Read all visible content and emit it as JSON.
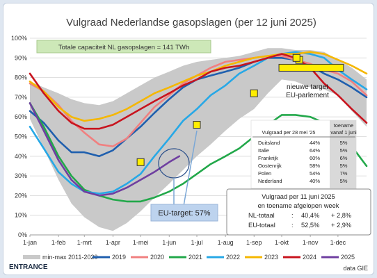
{
  "chart_data": {
    "type": "line",
    "title": "Vulgraad Nederlandse gasopslagen (per 12 juni 2025)",
    "xlabel": "",
    "ylabel": "",
    "x_ticks": [
      "1-jan",
      "1-feb",
      "1-mrt",
      "1-apr",
      "1-mei",
      "1-jun",
      "1-jul",
      "1-aug",
      "1-sep",
      "1-okt",
      "1-nov",
      "1-dec"
    ],
    "x_tick_days": [
      0,
      31,
      59,
      90,
      120,
      151,
      181,
      212,
      243,
      273,
      304,
      334
    ],
    "xlim": [
      0,
      365
    ],
    "y_ticks": [
      "0%",
      "10%",
      "20%",
      "30%",
      "40%",
      "50%",
      "60%",
      "70%",
      "80%",
      "90%",
      "100%"
    ],
    "ylim": [
      0,
      100
    ],
    "band": {
      "name": "min-max 2011-2020",
      "color": "#c9c9c9",
      "x": [
        0,
        15,
        31,
        45,
        59,
        75,
        90,
        105,
        120,
        135,
        151,
        166,
        181,
        196,
        212,
        227,
        243,
        258,
        273,
        288,
        304,
        319,
        334,
        349,
        365
      ],
      "min": [
        59,
        44,
        28,
        16,
        9,
        4,
        2,
        6,
        12,
        19,
        26,
        33,
        40,
        46,
        53,
        59,
        64,
        72,
        79,
        78,
        75,
        74,
        71,
        63,
        55
      ],
      "max": [
        78,
        75,
        72,
        69,
        67,
        66,
        68,
        72,
        76,
        80,
        83,
        86,
        88,
        89,
        90,
        91,
        93,
        95,
        95,
        94,
        94,
        93,
        89,
        85,
        79
      ]
    },
    "series": [
      {
        "name": "2019",
        "color": "#1f5fae",
        "x": [
          0,
          15,
          31,
          45,
          59,
          75,
          90,
          105,
          120,
          135,
          151,
          166,
          181,
          196,
          212,
          227,
          243,
          258,
          273,
          288,
          304,
          319,
          334,
          349,
          365
        ],
        "y": [
          63,
          57,
          48,
          42,
          42,
          40,
          43,
          49,
          55,
          62,
          69,
          75,
          79,
          81,
          83,
          85,
          88,
          90,
          90,
          89,
          86,
          82,
          79,
          75,
          70
        ]
      },
      {
        "name": "2020",
        "color": "#f08080",
        "x": [
          0,
          15,
          31,
          45,
          59,
          75,
          90,
          105,
          120,
          135,
          151,
          166,
          181,
          196,
          212,
          227,
          243,
          258,
          273,
          288,
          304,
          319,
          334,
          349,
          365
        ],
        "y": [
          77,
          73,
          66,
          58,
          52,
          46,
          45,
          49,
          57,
          65,
          71,
          77,
          81,
          85,
          88,
          89,
          90,
          91,
          91,
          89,
          87,
          84,
          82,
          78,
          71
        ]
      },
      {
        "name": "2021",
        "color": "#22a84a",
        "x": [
          0,
          15,
          31,
          45,
          59,
          75,
          90,
          105,
          120,
          135,
          151,
          166,
          181,
          196,
          212,
          227,
          243,
          258,
          273,
          288,
          304,
          319,
          334,
          349,
          365
        ],
        "y": [
          67,
          55,
          40,
          30,
          23,
          20,
          18,
          17,
          17,
          19,
          22,
          26,
          31,
          36,
          40,
          44,
          50,
          56,
          61,
          61,
          60,
          57,
          53,
          45,
          35
        ]
      },
      {
        "name": "2022",
        "color": "#27a8e6",
        "x": [
          0,
          15,
          31,
          45,
          59,
          75,
          90,
          105,
          120,
          135,
          151,
          166,
          181,
          196,
          212,
          227,
          243,
          258,
          273,
          288,
          304,
          319,
          334,
          349,
          365
        ],
        "y": [
          55,
          44,
          32,
          26,
          22,
          21,
          22,
          26,
          31,
          40,
          49,
          58,
          64,
          71,
          76,
          82,
          86,
          90,
          92,
          93,
          92,
          90,
          84,
          79,
          74
        ]
      },
      {
        "name": "2023",
        "color": "#f5b700",
        "x": [
          0,
          15,
          31,
          45,
          59,
          75,
          90,
          105,
          120,
          135,
          151,
          166,
          181,
          196,
          212,
          227,
          243,
          258,
          273,
          288,
          304,
          319,
          334,
          349,
          365
        ],
        "y": [
          78,
          73,
          65,
          60,
          58,
          59,
          61,
          64,
          68,
          72,
          75,
          78,
          81,
          83,
          86,
          88,
          90,
          91,
          92,
          92,
          93,
          92,
          89,
          86,
          82
        ]
      },
      {
        "name": "2024",
        "color": "#c8141e",
        "x": [
          0,
          15,
          31,
          45,
          59,
          75,
          90,
          105,
          120,
          135,
          151,
          166,
          181,
          196,
          212,
          227,
          243,
          258,
          273,
          288,
          304,
          319,
          334,
          349,
          365
        ],
        "y": [
          82,
          72,
          63,
          57,
          54,
          54,
          56,
          60,
          64,
          68,
          72,
          76,
          79,
          83,
          85,
          86,
          88,
          90,
          92,
          90,
          85,
          77,
          71,
          64,
          57
        ]
      },
      {
        "name": "2025",
        "color": "#6f3fa0",
        "x": [
          0,
          15,
          31,
          45,
          59,
          75,
          90,
          105,
          120,
          135,
          151,
          162
        ],
        "y": [
          67,
          53,
          38,
          28,
          22,
          20,
          21,
          24,
          28,
          32,
          37,
          40
        ]
      }
    ],
    "legend": [
      "min-max 2011-2020",
      "2019",
      "2020",
      "2021",
      "2022",
      "2023",
      "2024",
      "2025"
    ],
    "legend_position": "bottom",
    "grid": true,
    "target_markers": {
      "x": [
        120,
        181,
        243,
        292,
        289
      ],
      "y": [
        37,
        56,
        72,
        89,
        90
      ]
    },
    "new_target_bar": {
      "x": [
        270,
        340
      ],
      "y": 85
    },
    "annotations": {
      "capacity": "Totale capaciteit NL gasopslagen = 141 TWh",
      "new_target_line1": "nieuwe target",
      "new_target_line2": "EU-parlement",
      "eu_target": "EU-target: 57%"
    },
    "table_may": {
      "header1": "Vulgraad per 28 mei '25",
      "header2_line1": "toename",
      "header2_line2": "vanaf 1 juni",
      "rows": [
        [
          "Duitsland",
          "44%",
          "5%"
        ],
        [
          "Italie",
          "64%",
          "5%"
        ],
        [
          "Frankrijk",
          "60%",
          "6%"
        ],
        [
          "Oostenrijk",
          "58%",
          "5%"
        ],
        [
          "Polen",
          "54%",
          "7%"
        ],
        [
          "Nederland",
          "40%",
          "5%"
        ]
      ]
    },
    "box_june": {
      "line1": "Vulgraad per 11 juni 2025",
      "line2": "en toename afgelopen week",
      "nl_label": "NL-totaal",
      "nl_colon": ":",
      "nl_value": "40,4%",
      "nl_delta": "+ 2,8%",
      "eu_label": "EU-totaal",
      "eu_colon": ":",
      "eu_value": "52,5%",
      "eu_delta": "+ 2,9%"
    }
  },
  "footer": {
    "brand": "ENTRANCE",
    "source": "data GIE"
  }
}
